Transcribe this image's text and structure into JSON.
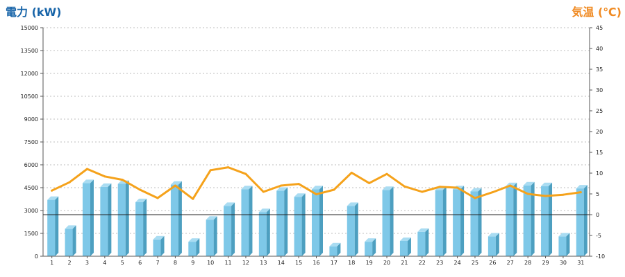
{
  "chart_data": {
    "type": "bar+line",
    "left_axis_title": "電力 (kW)",
    "right_axis_title": "気温 (℃)",
    "categories": [
      "1",
      "2",
      "3",
      "4",
      "5",
      "6",
      "7",
      "8",
      "9",
      "10",
      "11",
      "12",
      "13",
      "14",
      "15",
      "16",
      "17",
      "18",
      "19",
      "20",
      "21",
      "22",
      "23",
      "24",
      "25",
      "26",
      "27",
      "28",
      "29",
      "30",
      "31"
    ],
    "left_axis": {
      "min": 0,
      "max": 15000,
      "ticks": [
        "0",
        "1500",
        "3000",
        "4500",
        "6000",
        "7500",
        "9000",
        "10500",
        "12000",
        "13500",
        "15000"
      ]
    },
    "right_axis": {
      "min": -10,
      "max": 45,
      "ticks": [
        "-10",
        "-5",
        "0",
        "5",
        "10",
        "15",
        "20",
        "25",
        "30",
        "35",
        "40",
        "45"
      ]
    },
    "grid": true,
    "series": [
      {
        "kind": "bar",
        "axis": "left",
        "color": "#7ec8e8",
        "side_color": "#4d9fc0",
        "top_color": "#a9dcf2",
        "values": [
          3700,
          1800,
          4800,
          4550,
          4750,
          3550,
          1100,
          4700,
          950,
          2400,
          3300,
          4400,
          2900,
          4300,
          3900,
          4400,
          650,
          3300,
          950,
          4350,
          1000,
          1600,
          4350,
          4400,
          4250,
          1300,
          4600,
          4650,
          4600,
          1300,
          4450
        ]
      },
      {
        "kind": "line",
        "axis": "right",
        "color": "#f5a21b",
        "values": [
          5.8,
          7.8,
          11.0,
          9.2,
          8.4,
          6.0,
          4.0,
          7.0,
          3.8,
          10.7,
          11.4,
          9.8,
          5.5,
          7.0,
          7.4,
          4.9,
          6.0,
          10.1,
          7.6,
          9.8,
          6.8,
          5.5,
          6.7,
          6.5,
          4.0,
          5.4,
          7.0,
          5.0,
          4.5,
          4.8,
          5.4
        ]
      }
    ]
  }
}
